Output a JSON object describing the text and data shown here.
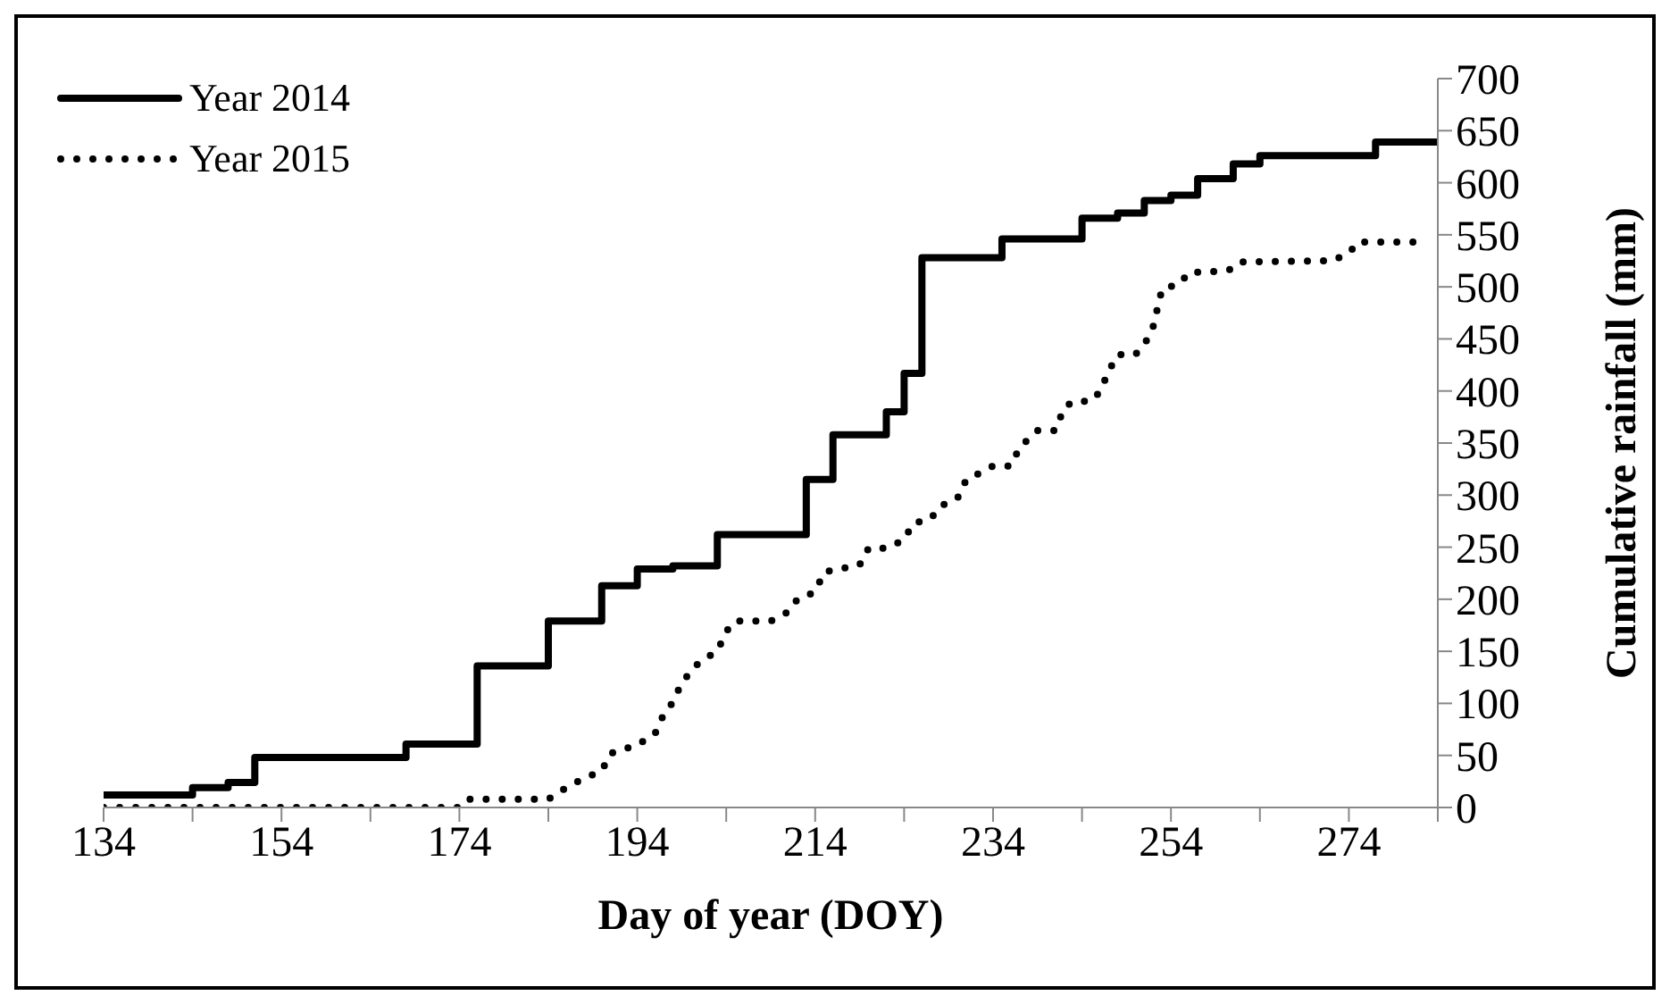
{
  "chart_data": {
    "type": "line",
    "xlabel": "Day of year (DOY)",
    "ylabel": "Cumulative rainfall (mm)",
    "xlim": [
      134,
      284
    ],
    "xticks": [
      134,
      {
        "value": 144,
        "label": null
      },
      154,
      {
        "value": 164,
        "label": null
      },
      174,
      {
        "value": 184,
        "label": null
      },
      194,
      {
        "value": 204,
        "label": null
      },
      214,
      {
        "value": 224,
        "label": null
      },
      234,
      {
        "value": 244,
        "label": null
      },
      254,
      {
        "value": 264,
        "label": null
      },
      274,
      {
        "value": 284,
        "label": null
      }
    ],
    "ylim": [
      0,
      700
    ],
    "yticks": [
      0,
      50,
      100,
      150,
      200,
      250,
      300,
      350,
      400,
      450,
      500,
      550,
      600,
      650,
      700
    ],
    "grid": false,
    "legend": "top left",
    "marker": "none",
    "series": [
      {
        "name": "Year 2014",
        "type": "step",
        "color": "#000000",
        "line_style": "solid",
        "x": [
          134,
          144,
          148,
          151,
          168,
          176,
          184,
          190,
          194,
          198,
          203,
          213,
          216,
          222,
          224,
          226,
          235,
          244,
          248,
          251,
          254,
          257,
          261,
          264,
          277,
          284
        ],
        "values": [
          12,
          19,
          24,
          48,
          61,
          136,
          179,
          213,
          229,
          232,
          262,
          315,
          358,
          380,
          417,
          528,
          546,
          566,
          571,
          583,
          588,
          604,
          618,
          626,
          639,
          639
        ]
      },
      {
        "name": "Year 2015",
        "type": "line",
        "color": "#000000",
        "line_style": "dotted",
        "x": [
          134,
          174,
          175,
          184,
          186,
          188,
          190,
          191,
          194,
          196,
          197,
          198,
          199,
          201,
          203,
          204,
          205,
          209,
          211,
          212,
          214,
          215,
          219,
          220,
          222,
          224,
          225,
          227,
          228,
          230,
          231,
          232,
          234,
          236,
          237,
          239,
          241,
          242,
          243,
          245,
          246,
          247,
          248,
          250,
          251,
          252,
          253,
          255,
          256,
          258,
          261,
          262,
          272,
          274,
          275,
          282
        ],
        "values": [
          0,
          0,
          8,
          8,
          19,
          28,
          35,
          52,
          60,
          71,
          90,
          101,
          120,
          140,
          150,
          169,
          179,
          179,
          188,
          200,
          207,
          226,
          233,
          249,
          249,
          257,
          273,
          277,
          289,
          297,
          315,
          319,
          328,
          328,
          346,
          362,
          362,
          384,
          390,
          390,
          399,
          419,
          435,
          435,
          444,
          462,
          498,
          503,
          514,
          514,
          517,
          524,
          525,
          532,
          543,
          543
        ]
      }
    ]
  }
}
